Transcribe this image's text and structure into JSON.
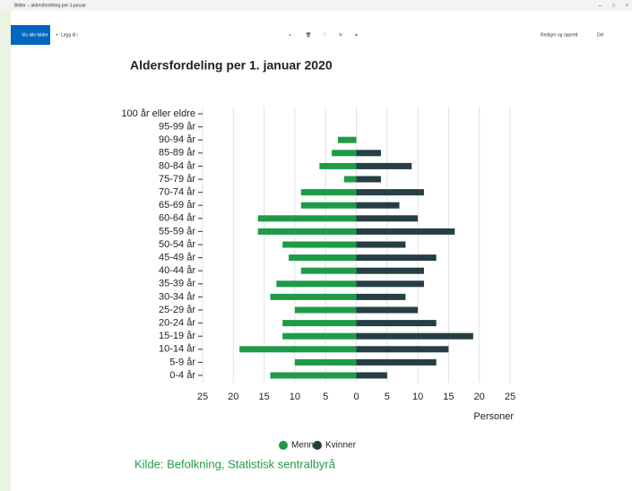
{
  "window": {
    "title": "Bilder – aldersfordeling-per-1-januar",
    "show_all": "Vis alle bilder",
    "add_to": "Legg til i",
    "edit": "Rediger og opprett",
    "share": "Del"
  },
  "chart_data": {
    "type": "bar",
    "orientation": "horizontal",
    "title": "Aldersfordeling per 1. januar 2020",
    "x_label": "Personer",
    "source": "Kilde: Befolkning, Statistisk sentralbyrå",
    "categories": [
      "0-4 år",
      "5-9 år",
      "10-14 år",
      "15-19 år",
      "20-24 år",
      "25-29 år",
      "30-34 år",
      "35-39 år",
      "40-44 år",
      "45-49 år",
      "50-54 år",
      "55-59 år",
      "60-64 år",
      "65-69 år",
      "70-74 år",
      "75-79 år",
      "80-84 år",
      "85-89 år",
      "90-94 år",
      "95-99 år",
      "100 år eller eldre"
    ],
    "series": [
      {
        "name": "Menn",
        "color": "#1e9b47",
        "values": [
          -14,
          -10,
          -19,
          -12,
          -12,
          -10,
          -14,
          -13,
          -9,
          -11,
          -12,
          -16,
          -16,
          -9,
          -9,
          -2,
          -6,
          -4,
          -3,
          0,
          0
        ]
      },
      {
        "name": "Kvinner",
        "color": "#263e44",
        "values": [
          5,
          13,
          15,
          19,
          13,
          10,
          8,
          11,
          11,
          13,
          8,
          16,
          10,
          7,
          11,
          4,
          9,
          4,
          0,
          0,
          0
        ]
      }
    ],
    "xlim": [
      -25,
      25
    ],
    "xticks": [
      {
        "value": -25,
        "label": "25"
      },
      {
        "value": -20,
        "label": "20"
      },
      {
        "value": -15,
        "label": "15"
      },
      {
        "value": -10,
        "label": "10"
      },
      {
        "value": -5,
        "label": "5"
      },
      0,
      5,
      10,
      15,
      20,
      25
    ],
    "grid": true,
    "legend": "bottom"
  }
}
